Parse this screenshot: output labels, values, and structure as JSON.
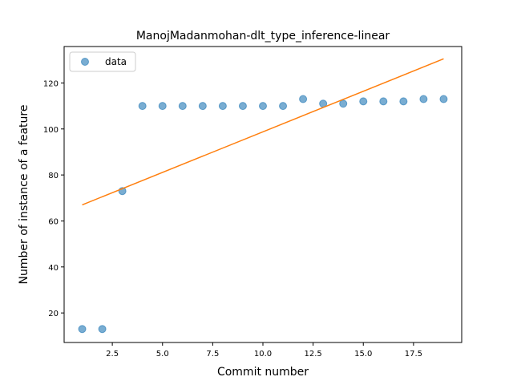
{
  "chart_data": {
    "type": "scatter",
    "title": "ManojMadanmohan-dlt_type_inference-linear",
    "xlabel": "Commit number",
    "ylabel": "Number of instance of a feature",
    "xlim": [
      0.1,
      19.9
    ],
    "ylim": [
      7.15,
      135.85
    ],
    "xticks": [
      2.5,
      5.0,
      7.5,
      10.0,
      12.5,
      15.0,
      17.5
    ],
    "xtick_labels": [
      "2.5",
      "5.0",
      "7.5",
      "10.0",
      "12.5",
      "15.0",
      "17.5"
    ],
    "yticks": [
      20,
      40,
      60,
      80,
      100,
      120
    ],
    "ytick_labels": [
      "20",
      "40",
      "60",
      "80",
      "100",
      "120"
    ],
    "grid": false,
    "legend_position": "upper-left",
    "series": [
      {
        "name": "data",
        "kind": "scatter",
        "color": "#1f77b4",
        "x": [
          1,
          2,
          3,
          4,
          5,
          6,
          7,
          8,
          9,
          10,
          11,
          12,
          13,
          14,
          15,
          16,
          17,
          18,
          19
        ],
        "y": [
          13,
          13,
          73,
          110,
          110,
          110,
          110,
          110,
          110,
          110,
          110,
          113,
          111,
          111,
          112,
          112,
          112,
          113,
          113
        ]
      },
      {
        "kind": "line",
        "color": "#ff7f0e",
        "x": [
          1,
          19
        ],
        "y": [
          67,
          130.5
        ]
      }
    ]
  }
}
